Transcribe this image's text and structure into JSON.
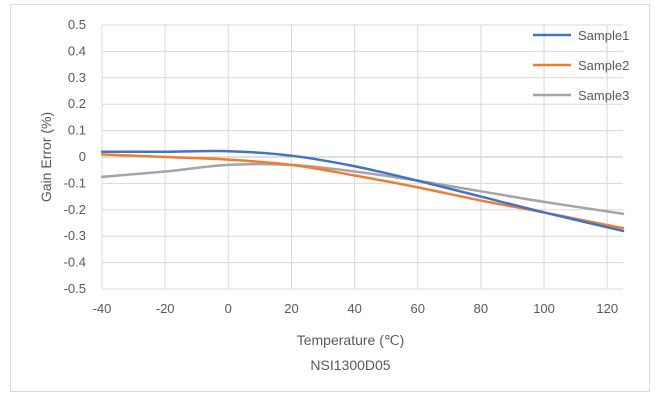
{
  "chart_data": {
    "type": "line",
    "xlabel": "Temperature (℃)",
    "ylabel": "Gain Error (%)",
    "subtitle": "NSI1300D05",
    "xlim": [
      -40,
      125
    ],
    "ylim": [
      -0.5,
      0.5
    ],
    "x_ticks": [
      -40,
      -20,
      0,
      20,
      40,
      60,
      80,
      100,
      120
    ],
    "y_ticks": [
      0.5,
      0.4,
      0.3,
      0.2,
      0.1,
      0,
      -0.1,
      -0.2,
      -0.3,
      -0.4,
      -0.5
    ],
    "grid": true,
    "legend_position": "top-right",
    "series": [
      {
        "name": "Sample1",
        "color": "#4472c4",
        "x": [
          -40,
          -20,
          0,
          20,
          40,
          60,
          80,
          100,
          125
        ],
        "y": [
          0.02,
          0.02,
          0.022,
          0.005,
          -0.035,
          -0.09,
          -0.15,
          -0.21,
          -0.28
        ]
      },
      {
        "name": "Sample2",
        "color": "#ed7d31",
        "x": [
          -40,
          -20,
          0,
          20,
          40,
          60,
          80,
          100,
          125
        ],
        "y": [
          0.01,
          0.0,
          -0.01,
          -0.03,
          -0.07,
          -0.115,
          -0.165,
          -0.21,
          -0.27
        ]
      },
      {
        "name": "Sample3",
        "color": "#a5a5a5",
        "x": [
          -40,
          -20,
          0,
          20,
          40,
          60,
          80,
          100,
          125
        ],
        "y": [
          -0.075,
          -0.055,
          -0.03,
          -0.03,
          -0.055,
          -0.09,
          -0.13,
          -0.17,
          -0.215
        ]
      }
    ]
  }
}
